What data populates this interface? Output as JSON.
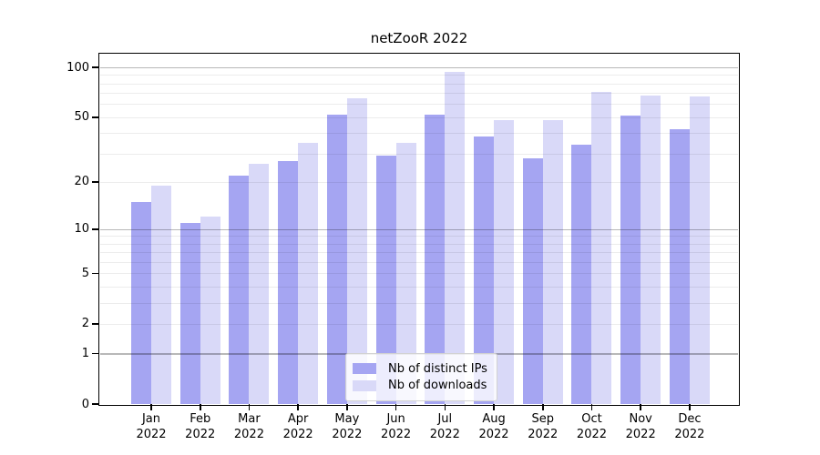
{
  "chart_data": {
    "type": "bar",
    "title": "netZooR 2022",
    "categories": [
      "Jan 2022",
      "Feb 2022",
      "Mar 2022",
      "Apr 2022",
      "May 2022",
      "Jun 2022",
      "Jul 2022",
      "Aug 2022",
      "Sep 2022",
      "Oct 2022",
      "Nov 2022",
      "Dec 2022"
    ],
    "series": [
      {
        "name": "Nb of distinct IPs",
        "color": "#a5a5f2",
        "values": [
          15,
          11,
          22,
          27,
          52,
          29,
          52,
          38,
          28,
          34,
          51,
          42
        ]
      },
      {
        "name": "Nb of downloads",
        "color": "#d9d9f8",
        "values": [
          19,
          12,
          26,
          35,
          65,
          35,
          94,
          48,
          48,
          71,
          68,
          67
        ]
      }
    ],
    "xlabel": "",
    "ylabel": "",
    "yscale": "log1p",
    "ylim": [
      0,
      119
    ],
    "ytick_values": [
      0,
      1,
      2,
      5,
      10,
      20,
      50,
      100
    ],
    "minor_grid_values": [
      2,
      3,
      4,
      5,
      6,
      7,
      8,
      9,
      20,
      30,
      40,
      50,
      60,
      70,
      80,
      90
    ],
    "major_grid_values": [
      1,
      10,
      100
    ],
    "grid": true,
    "legend_position": "lower center",
    "colors": {
      "distinct_ips_bar": "#a5a5f2",
      "downloads_bar": "#d9d9f8",
      "axis": "#000000",
      "major_grid": "rgba(0,0,0,0.28)",
      "minor_grid": "rgba(0,0,0,0.075)",
      "background": "#ffffff"
    }
  }
}
